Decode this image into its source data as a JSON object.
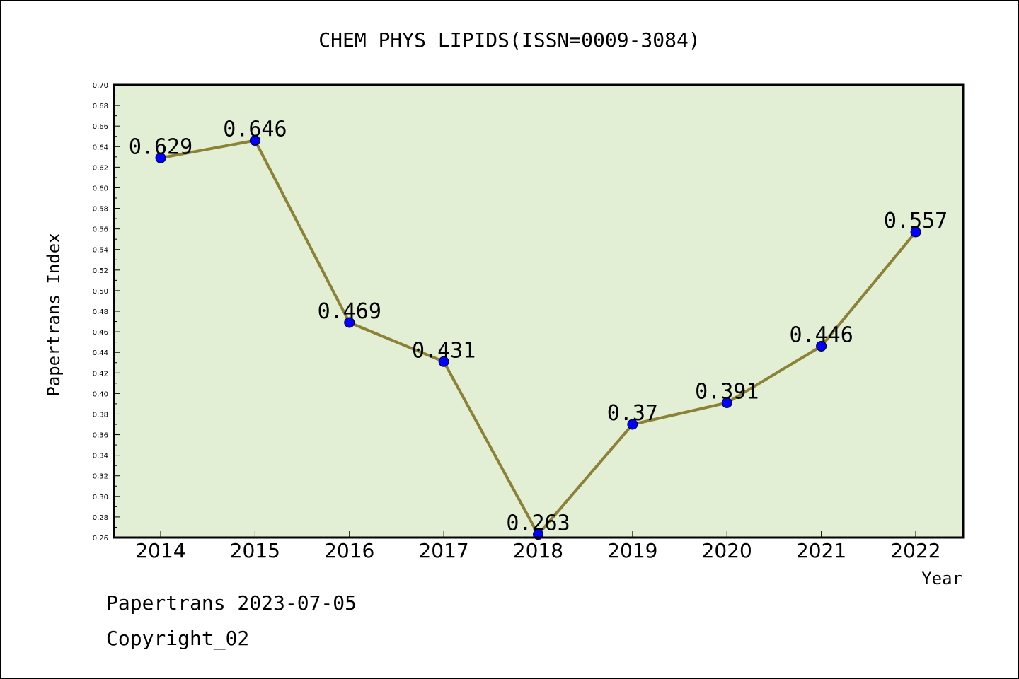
{
  "chart_data": {
    "type": "line",
    "title": "CHEM PHYS LIPIDS(ISSN=0009-3084)",
    "xlabel": "Year",
    "ylabel": "Papertrans Index",
    "categories": [
      "2014",
      "2015",
      "2016",
      "2017",
      "2018",
      "2019",
      "2020",
      "2021",
      "2022"
    ],
    "values": [
      0.629,
      0.646,
      0.469,
      0.431,
      0.263,
      0.37,
      0.391,
      0.446,
      0.557
    ],
    "data_labels": [
      "0.629",
      "0.646",
      "0.469",
      "0.431",
      "0.263",
      "0.37",
      "0.391",
      "0.446",
      "0.557"
    ],
    "ylim": [
      0.26,
      0.7
    ],
    "ytick_step": 0.02,
    "grid": false,
    "colors": {
      "plot_background": "#e2efd4",
      "line": "#8b8238",
      "marker": "#0000ff"
    }
  },
  "footer": {
    "line1": "Papertrans 2023-07-05",
    "line2": "Copyright_02"
  }
}
